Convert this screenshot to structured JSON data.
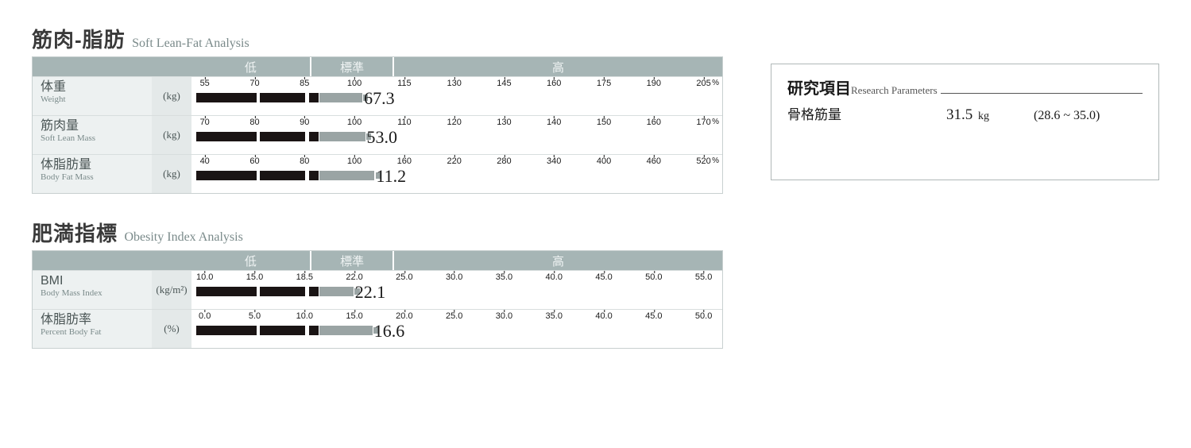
{
  "colors": {
    "band_bg": "#a6b5b5",
    "band_text": "#f0f4f4",
    "label_bg": "#edf1f1",
    "unit_bg": "#e4e9e9",
    "border": "#c8d0d0",
    "bar_dark": "#1a1414",
    "bar_gray": "#9aa4a4"
  },
  "section1": {
    "title_jp": "筋肉-脂肪",
    "title_en": "Soft Lean-Fat Analysis",
    "bands": [
      {
        "label": "低",
        "width_pct": 22.4
      },
      {
        "label": "標準",
        "width_pct": 15.8
      },
      {
        "label": "高",
        "width_pct": 61.8
      }
    ],
    "rows": [
      {
        "name_jp": "体重",
        "name_en": "Weight",
        "unit": "(kg)",
        "show_pct": true,
        "ticks": [
          "55",
          "70",
          "85",
          "100",
          "115",
          "130",
          "145",
          "160",
          "175",
          "190",
          "205"
        ],
        "value": "67.3",
        "segments": [
          {
            "color": "dark",
            "start_pct": 0,
            "end_pct": 23.5
          },
          {
            "color": "gray",
            "start_pct": 23.6,
            "end_pct": 31.8
          }
        ],
        "value_pos_pct": 32.5
      },
      {
        "name_jp": "筋肉量",
        "name_en": "Soft Lean Mass",
        "unit": "(kg)",
        "show_pct": true,
        "ticks": [
          "70",
          "80",
          "90",
          "100",
          "110",
          "120",
          "130",
          "140",
          "150",
          "160",
          "170"
        ],
        "value": "53.0",
        "segments": [
          {
            "color": "dark",
            "start_pct": 0,
            "end_pct": 23.5
          },
          {
            "color": "gray",
            "start_pct": 23.6,
            "end_pct": 32.4
          }
        ],
        "value_pos_pct": 33.0
      },
      {
        "name_jp": "体脂肪量",
        "name_en": "Body Fat Mass",
        "unit": "(kg)",
        "show_pct": true,
        "ticks": [
          "40",
          "60",
          "80",
          "100",
          "160",
          "220",
          "280",
          "340",
          "400",
          "460",
          "520"
        ],
        "value": "11.2",
        "segments": [
          {
            "color": "dark",
            "start_pct": 0,
            "end_pct": 23.5
          },
          {
            "color": "gray",
            "start_pct": 23.6,
            "end_pct": 34.2
          }
        ],
        "value_pos_pct": 34.8
      }
    ]
  },
  "section2": {
    "title_jp": "肥満指標",
    "title_en": "Obesity Index Analysis",
    "bands": [
      {
        "label": "低",
        "width_pct": 22.4
      },
      {
        "label": "標準",
        "width_pct": 15.8
      },
      {
        "label": "高",
        "width_pct": 61.8
      }
    ],
    "rows": [
      {
        "name_jp": "BMI",
        "name_en": "Body Mass Index",
        "unit": "(kg/m²)",
        "show_pct": false,
        "ticks": [
          "10.0",
          "15.0",
          "18.5",
          "22.0",
          "25.0",
          "30.0",
          "35.0",
          "40.0",
          "45.0",
          "50.0",
          "55.0"
        ],
        "value": "22.1",
        "segments": [
          {
            "color": "dark",
            "start_pct": 0,
            "end_pct": 23.5
          },
          {
            "color": "gray",
            "start_pct": 23.6,
            "end_pct": 30.2
          }
        ],
        "value_pos_pct": 30.8
      },
      {
        "name_jp": "体脂肪率",
        "name_en": "Percent Body Fat",
        "unit": "(%)",
        "show_pct": false,
        "ticks": [
          "0.0",
          "5.0",
          "10.0",
          "15.0",
          "20.0",
          "25.0",
          "30.0",
          "35.0",
          "40.0",
          "45.0",
          "50.0"
        ],
        "value": "16.6",
        "segments": [
          {
            "color": "dark",
            "start_pct": 0,
            "end_pct": 23.5
          },
          {
            "color": "gray",
            "start_pct": 23.6,
            "end_pct": 33.8
          }
        ],
        "value_pos_pct": 34.4
      }
    ]
  },
  "research": {
    "title_jp": "研究項目",
    "title_en": "Research Parameters",
    "rows": [
      {
        "name": "骨格筋量",
        "value": "31.5",
        "unit": "kg",
        "range": "(28.6 ~ 35.0)"
      }
    ]
  }
}
